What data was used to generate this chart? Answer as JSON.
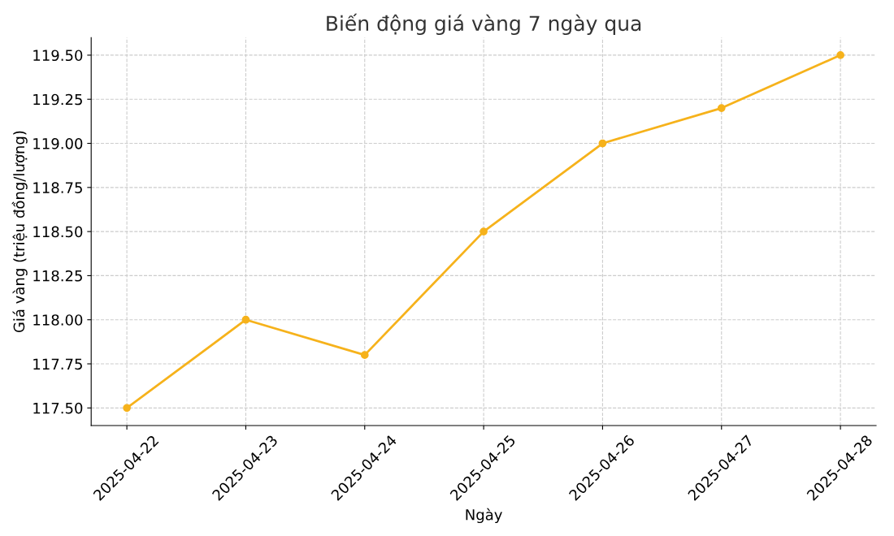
{
  "chart_data": {
    "type": "line",
    "title": "Biến động giá vàng 7 ngày qua",
    "xlabel": "Ngày",
    "ylabel": "Giá vàng (triệu đồng/lượng)",
    "categories": [
      "2025-04-22",
      "2025-04-23",
      "2025-04-24",
      "2025-04-25",
      "2025-04-26",
      "2025-04-27",
      "2025-04-28"
    ],
    "series": [
      {
        "color": "#f6b21b",
        "values": [
          117.5,
          118.0,
          117.8,
          118.5,
          119.0,
          119.2,
          119.5
        ]
      }
    ],
    "ylim": [
      117.4,
      119.6
    ],
    "yticks": [
      {
        "value": 117.5,
        "label": "117.50"
      },
      {
        "value": 117.75,
        "label": "117.75"
      },
      {
        "value": 118.0,
        "label": "118.00"
      },
      {
        "value": 118.25,
        "label": "118.25"
      },
      {
        "value": 118.5,
        "label": "118.50"
      },
      {
        "value": 118.75,
        "label": "118.75"
      },
      {
        "value": 119.0,
        "label": "119.00"
      },
      {
        "value": 119.25,
        "label": "119.25"
      },
      {
        "value": 119.5,
        "label": "119.50"
      }
    ],
    "grid": true,
    "marker": "circle",
    "line_style": "solid"
  }
}
